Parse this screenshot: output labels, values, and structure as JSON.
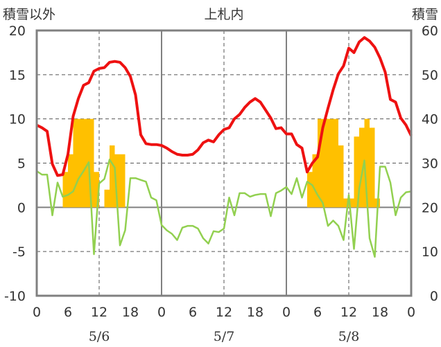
{
  "chart_data": {
    "type": "bar+line",
    "title": "上札内",
    "left_axis_label": "積雪以外",
    "right_axis_label": "積雪",
    "ylim_left": [
      -10,
      20
    ],
    "ylim_right": [
      0,
      60
    ],
    "yticks_left": [
      "20",
      "15",
      "10",
      "5",
      "0",
      "-5",
      "-10"
    ],
    "yticks_right": [
      "60",
      "50",
      "40",
      "30",
      "20",
      "10",
      "0"
    ],
    "x_hours": [
      0,
      72
    ],
    "xticks": [
      "0",
      "6",
      "12",
      "18",
      "0",
      "6",
      "12",
      "18",
      "0",
      "6",
      "12",
      "18",
      "0"
    ],
    "dates": [
      "5/6",
      "5/7",
      "5/8"
    ],
    "grid": "dashed at every 5 units and every 12 h",
    "colors": {
      "temperature": "#ee1111",
      "wind": "#92d050",
      "precip": "#ffc000",
      "snow_depth": "#7030a0",
      "axis": "#808080",
      "grid": "#555555"
    },
    "series": [
      {
        "key": "temperature",
        "type": "line",
        "axis": "left",
        "points": [
          [
            0,
            9.3
          ],
          [
            1,
            9.0
          ],
          [
            2,
            8.6
          ],
          [
            3,
            4.9
          ],
          [
            4,
            3.6
          ],
          [
            5,
            3.7
          ],
          [
            6,
            6.0
          ],
          [
            7,
            10.3
          ],
          [
            8,
            12.3
          ],
          [
            9,
            13.8
          ],
          [
            10,
            14.1
          ],
          [
            11,
            15.4
          ],
          [
            12,
            15.7
          ],
          [
            13,
            15.8
          ],
          [
            14,
            16.4
          ],
          [
            15,
            16.5
          ],
          [
            16,
            16.4
          ],
          [
            17,
            15.8
          ],
          [
            18,
            14.8
          ],
          [
            19,
            12.7
          ],
          [
            20,
            8.2
          ],
          [
            21,
            7.2
          ],
          [
            22,
            7.1
          ],
          [
            23,
            7.1
          ],
          [
            24,
            7.0
          ],
          [
            25,
            6.7
          ],
          [
            26,
            6.3
          ],
          [
            27,
            6.0
          ],
          [
            28,
            5.9
          ],
          [
            29,
            5.9
          ],
          [
            30,
            6.0
          ],
          [
            31,
            6.5
          ],
          [
            32,
            7.3
          ],
          [
            33,
            7.6
          ],
          [
            34,
            7.4
          ],
          [
            35,
            8.2
          ],
          [
            36,
            8.8
          ],
          [
            37,
            9.0
          ],
          [
            38,
            10.0
          ],
          [
            39,
            10.5
          ],
          [
            40,
            11.3
          ],
          [
            41,
            11.9
          ],
          [
            42,
            12.3
          ],
          [
            43,
            11.9
          ],
          [
            44,
            11.0
          ],
          [
            45,
            10.1
          ],
          [
            46,
            8.9
          ],
          [
            47,
            9.0
          ],
          [
            48,
            8.3
          ],
          [
            49,
            8.3
          ],
          [
            50,
            7.1
          ],
          [
            51,
            6.7
          ],
          [
            52,
            4.0
          ],
          [
            53,
            5.0
          ],
          [
            54,
            5.7
          ],
          [
            55,
            9.0
          ],
          [
            56,
            11.2
          ],
          [
            57,
            13.3
          ],
          [
            58,
            15.1
          ],
          [
            59,
            16.0
          ],
          [
            60,
            18.0
          ],
          [
            61,
            17.5
          ],
          [
            62,
            18.7
          ],
          [
            63,
            19.2
          ],
          [
            64,
            18.8
          ],
          [
            65,
            18.1
          ],
          [
            66,
            16.9
          ],
          [
            67,
            15.3
          ],
          [
            68,
            12.2
          ],
          [
            69,
            11.9
          ],
          [
            70,
            10.1
          ],
          [
            71,
            9.3
          ],
          [
            72,
            8.1
          ]
        ]
      },
      {
        "key": "wind",
        "type": "line",
        "axis": "left",
        "points": [
          [
            0,
            4.1
          ],
          [
            1,
            3.7
          ],
          [
            2,
            3.7
          ],
          [
            3,
            -0.9
          ],
          [
            4,
            2.8
          ],
          [
            5,
            1.2
          ],
          [
            6,
            1.4
          ],
          [
            7,
            1.8
          ],
          [
            8,
            3.2
          ],
          [
            9,
            4.1
          ],
          [
            10,
            5.1
          ],
          [
            11,
            -5.3
          ],
          [
            12,
            2.7
          ],
          [
            13,
            3.2
          ],
          [
            14,
            5.4
          ],
          [
            15,
            4.5
          ],
          [
            16,
            -4.3
          ],
          [
            17,
            -2.6
          ],
          [
            18,
            3.3
          ],
          [
            19,
            3.3
          ],
          [
            20,
            3.1
          ],
          [
            21,
            2.9
          ],
          [
            22,
            1.1
          ],
          [
            23,
            0.8
          ],
          [
            24,
            -2.0
          ],
          [
            25,
            -2.6
          ],
          [
            26,
            -3.0
          ],
          [
            27,
            -3.7
          ],
          [
            28,
            -2.3
          ],
          [
            29,
            -2.1
          ],
          [
            30,
            -2.1
          ],
          [
            31,
            -2.4
          ],
          [
            32,
            -3.5
          ],
          [
            33,
            -4.1
          ],
          [
            34,
            -2.7
          ],
          [
            35,
            -2.8
          ],
          [
            36,
            -2.4
          ],
          [
            37,
            1.1
          ],
          [
            38,
            -0.9
          ],
          [
            39,
            1.6
          ],
          [
            40,
            1.6
          ],
          [
            41,
            1.2
          ],
          [
            42,
            1.4
          ],
          [
            43,
            1.5
          ],
          [
            44,
            1.5
          ],
          [
            45,
            -1.0
          ],
          [
            46,
            1.6
          ],
          [
            47,
            1.9
          ],
          [
            48,
            2.3
          ],
          [
            49,
            1.5
          ],
          [
            50,
            3.3
          ],
          [
            51,
            1.1
          ],
          [
            52,
            2.9
          ],
          [
            53,
            2.5
          ],
          [
            54,
            1.4
          ],
          [
            55,
            0.5
          ],
          [
            56,
            -2.1
          ],
          [
            57,
            -1.5
          ],
          [
            58,
            -2.1
          ],
          [
            59,
            -3.7
          ],
          [
            60,
            1.4
          ],
          [
            61,
            -4.7
          ],
          [
            62,
            2.1
          ],
          [
            63,
            5.3
          ],
          [
            64,
            -3.5
          ],
          [
            65,
            -5.6
          ],
          [
            66,
            4.6
          ],
          [
            67,
            4.6
          ],
          [
            68,
            2.8
          ],
          [
            69,
            -0.9
          ],
          [
            70,
            1.1
          ],
          [
            71,
            1.7
          ],
          [
            72,
            1.8
          ]
        ]
      },
      {
        "key": "precip",
        "type": "bar",
        "axis": "left",
        "bars": [
          [
            5.5,
            4
          ],
          [
            6.5,
            6
          ],
          [
            7.5,
            10
          ],
          [
            8.5,
            10
          ],
          [
            9.5,
            10
          ],
          [
            10.5,
            10
          ],
          [
            11.5,
            4
          ],
          [
            13.5,
            2
          ],
          [
            14.5,
            7
          ],
          [
            15.5,
            6
          ],
          [
            16.5,
            6
          ],
          [
            52.5,
            4
          ],
          [
            53.5,
            6
          ],
          [
            54.5,
            10
          ],
          [
            55.5,
            10
          ],
          [
            56.5,
            10
          ],
          [
            57.5,
            10
          ],
          [
            58.5,
            7
          ],
          [
            59.5,
            1
          ],
          [
            60.5,
            1
          ],
          [
            61.5,
            8
          ],
          [
            62.5,
            9
          ],
          [
            63.5,
            10
          ],
          [
            64.5,
            9
          ],
          [
            65.5,
            1
          ]
        ]
      },
      {
        "key": "snow_depth",
        "type": "line",
        "axis": "right",
        "points": [
          [
            0,
            0
          ],
          [
            72,
            0
          ]
        ]
      }
    ]
  }
}
